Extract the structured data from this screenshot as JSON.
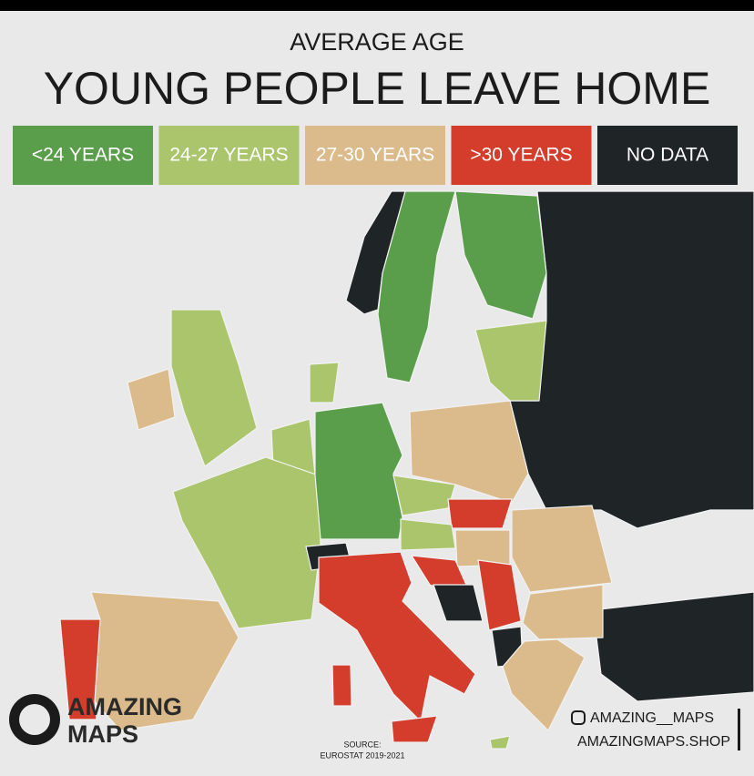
{
  "header": {
    "subtitle": "AVERAGE AGE",
    "title": "YOUNG PEOPLE LEAVE HOME"
  },
  "legend": [
    {
      "label": "<24 YEARS",
      "color": "#5a9e4b"
    },
    {
      "label": "24-27 YEARS",
      "color": "#aac56b"
    },
    {
      "label": "27-30 YEARS",
      "color": "#dbba8b"
    },
    {
      "label": ">30 YEARS",
      "color": "#d43c2c"
    },
    {
      "label": "NO DATA",
      "color": "#1f2427"
    }
  ],
  "branding": {
    "logo_text": [
      "AMAZING",
      "MAPS"
    ],
    "instagram": "AMAZING__MAPS",
    "shop": "AMAZINGMAPS.SHOP"
  },
  "source": [
    "SOURCE:",
    "EUROSTAT 2019-2021"
  ]
}
